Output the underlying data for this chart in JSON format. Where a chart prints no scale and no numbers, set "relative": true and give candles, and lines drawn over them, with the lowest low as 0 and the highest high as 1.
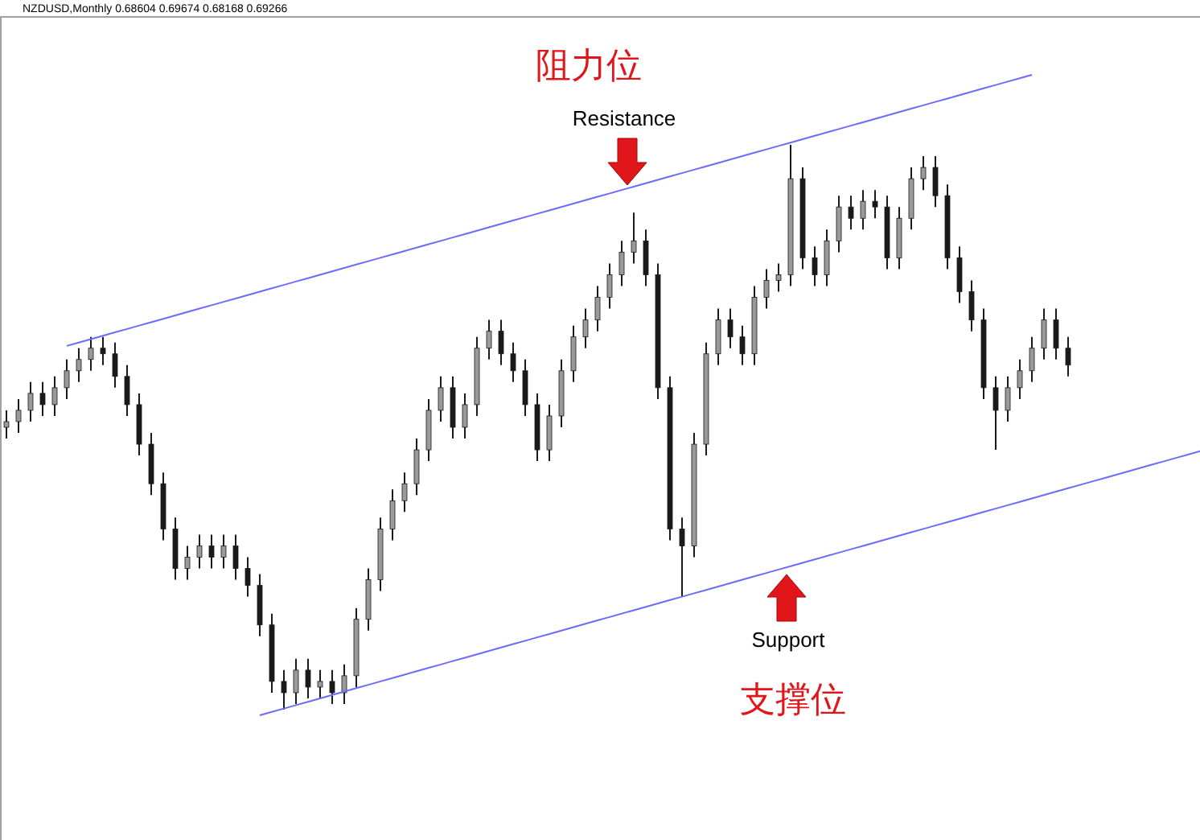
{
  "chart_data": {
    "type": "candlestick",
    "relative": true,
    "title": "NZDUSD,Monthly  0.68604 0.69674 0.68168 0.69266",
    "categories": [
      null,
      null,
      null,
      null,
      null,
      null,
      null,
      null,
      null,
      null,
      null,
      null,
      null,
      null,
      null,
      null,
      null,
      null,
      null,
      null,
      null,
      null,
      null,
      null,
      null,
      null,
      null,
      null,
      null,
      null,
      null,
      null,
      null,
      null,
      null,
      null,
      null,
      null,
      null,
      null,
      null,
      null,
      null,
      null,
      null,
      null,
      null,
      null,
      null,
      null,
      null,
      null,
      null,
      null,
      null,
      null,
      null,
      null,
      null,
      null,
      null,
      null,
      null,
      null,
      null,
      null,
      null,
      null,
      null,
      null,
      null,
      null,
      null,
      null,
      null,
      null,
      null,
      null,
      null,
      null,
      null,
      null,
      null,
      null,
      null,
      null,
      null,
      null,
      null,
      null,
      null,
      null,
      null,
      null,
      null,
      null,
      null,
      null,
      null,
      null
    ],
    "series": [
      {
        "color": "#1a1a1a",
        "ohlc": [
          [
            0.5,
            0.53,
            0.48,
            0.51
          ],
          [
            0.51,
            0.55,
            0.49,
            0.53
          ],
          [
            0.53,
            0.58,
            0.51,
            0.56
          ],
          [
            0.56,
            0.58,
            0.52,
            0.54
          ],
          [
            0.54,
            0.59,
            0.52,
            0.57
          ],
          [
            0.57,
            0.62,
            0.55,
            0.6
          ],
          [
            0.6,
            0.64,
            0.58,
            0.62
          ],
          [
            0.62,
            0.66,
            0.6,
            0.64
          ],
          [
            0.64,
            0.66,
            0.61,
            0.63
          ],
          [
            0.63,
            0.65,
            0.57,
            0.59
          ],
          [
            0.59,
            0.61,
            0.52,
            0.54
          ],
          [
            0.54,
            0.56,
            0.45,
            0.47
          ],
          [
            0.47,
            0.49,
            0.38,
            0.4
          ],
          [
            0.4,
            0.42,
            0.3,
            0.32
          ],
          [
            0.32,
            0.34,
            0.23,
            0.25
          ],
          [
            0.25,
            0.29,
            0.23,
            0.27
          ],
          [
            0.27,
            0.31,
            0.25,
            0.29
          ],
          [
            0.29,
            0.31,
            0.25,
            0.27
          ],
          [
            0.27,
            0.31,
            0.25,
            0.29
          ],
          [
            0.29,
            0.31,
            0.23,
            0.25
          ],
          [
            0.25,
            0.27,
            0.2,
            0.22
          ],
          [
            0.22,
            0.24,
            0.13,
            0.15
          ],
          [
            0.15,
            0.17,
            0.03,
            0.05
          ],
          [
            0.05,
            0.07,
            0,
            0.03
          ],
          [
            0.03,
            0.09,
            0.01,
            0.07
          ],
          [
            0.07,
            0.09,
            0.02,
            0.04
          ],
          [
            0.04,
            0.07,
            0.02,
            0.05
          ],
          [
            0.05,
            0.07,
            0.01,
            0.03
          ],
          [
            0.03,
            0.08,
            0.01,
            0.06
          ],
          [
            0.06,
            0.18,
            0.04,
            0.16
          ],
          [
            0.16,
            0.25,
            0.14,
            0.23
          ],
          [
            0.23,
            0.34,
            0.21,
            0.32
          ],
          [
            0.32,
            0.39,
            0.3,
            0.37
          ],
          [
            0.37,
            0.42,
            0.35,
            0.4
          ],
          [
            0.4,
            0.48,
            0.38,
            0.46
          ],
          [
            0.46,
            0.55,
            0.44,
            0.53
          ],
          [
            0.53,
            0.59,
            0.51,
            0.57
          ],
          [
            0.57,
            0.59,
            0.48,
            0.5
          ],
          [
            0.5,
            0.56,
            0.48,
            0.54
          ],
          [
            0.54,
            0.66,
            0.52,
            0.64
          ],
          [
            0.64,
            0.69,
            0.62,
            0.67
          ],
          [
            0.67,
            0.69,
            0.61,
            0.63
          ],
          [
            0.63,
            0.65,
            0.58,
            0.6
          ],
          [
            0.6,
            0.62,
            0.52,
            0.54
          ],
          [
            0.54,
            0.56,
            0.44,
            0.46
          ],
          [
            0.46,
            0.54,
            0.44,
            0.52
          ],
          [
            0.52,
            0.62,
            0.5,
            0.6
          ],
          [
            0.6,
            0.68,
            0.58,
            0.66
          ],
          [
            0.66,
            0.71,
            0.64,
            0.69
          ],
          [
            0.69,
            0.75,
            0.67,
            0.73
          ],
          [
            0.73,
            0.79,
            0.71,
            0.77
          ],
          [
            0.77,
            0.83,
            0.75,
            0.81
          ],
          [
            0.81,
            0.88,
            0.79,
            0.83
          ],
          [
            0.83,
            0.85,
            0.75,
            0.77
          ],
          [
            0.77,
            0.79,
            0.55,
            0.57
          ],
          [
            0.57,
            0.59,
            0.3,
            0.32
          ],
          [
            0.32,
            0.34,
            0.2,
            0.29
          ],
          [
            0.29,
            0.49,
            0.27,
            0.47
          ],
          [
            0.47,
            0.65,
            0.45,
            0.63
          ],
          [
            0.63,
            0.71,
            0.61,
            0.69
          ],
          [
            0.69,
            0.71,
            0.64,
            0.66
          ],
          [
            0.66,
            0.68,
            0.61,
            0.63
          ],
          [
            0.63,
            0.75,
            0.61,
            0.73
          ],
          [
            0.73,
            0.78,
            0.71,
            0.76
          ],
          [
            0.76,
            0.79,
            0.74,
            0.77
          ],
          [
            0.77,
            1,
            0.75,
            0.94
          ],
          [
            0.94,
            0.96,
            0.78,
            0.8
          ],
          [
            0.8,
            0.82,
            0.75,
            0.77
          ],
          [
            0.77,
            0.85,
            0.75,
            0.83
          ],
          [
            0.83,
            0.91,
            0.81,
            0.89
          ],
          [
            0.89,
            0.91,
            0.85,
            0.87
          ],
          [
            0.87,
            0.92,
            0.85,
            0.9
          ],
          [
            0.9,
            0.92,
            0.87,
            0.89
          ],
          [
            0.89,
            0.91,
            0.78,
            0.8
          ],
          [
            0.8,
            0.89,
            0.78,
            0.87
          ],
          [
            0.87,
            0.96,
            0.85,
            0.94
          ],
          [
            0.94,
            0.98,
            0.92,
            0.96
          ],
          [
            0.96,
            0.98,
            0.89,
            0.91
          ],
          [
            0.91,
            0.93,
            0.78,
            0.8
          ],
          [
            0.8,
            0.82,
            0.72,
            0.74
          ],
          [
            0.74,
            0.76,
            0.67,
            0.69
          ],
          [
            0.69,
            0.71,
            0.55,
            0.57
          ],
          [
            0.57,
            0.59,
            0.46,
            0.53
          ],
          [
            0.53,
            0.59,
            0.51,
            0.57
          ],
          [
            0.57,
            0.62,
            0.55,
            0.6
          ],
          [
            0.6,
            0.66,
            0.58,
            0.64
          ],
          [
            0.64,
            0.71,
            0.62,
            0.69
          ],
          [
            0.69,
            0.71,
            0.62,
            0.64
          ],
          [
            0.64,
            0.66,
            0.59,
            0.61
          ],
          null,
          null,
          null,
          null,
          null,
          null,
          null,
          null,
          null,
          null,
          null
        ]
      },
      {
        "type": "line",
        "color": "#6b6bff",
        "values": [
          null,
          null,
          null,
          null,
          null,
          0.644,
          0.65,
          0.656,
          0.662,
          0.668,
          0.674,
          0.68,
          0.686,
          0.692,
          0.698,
          0.704,
          0.71,
          0.716,
          0.722,
          0.728,
          0.734,
          0.74,
          0.746,
          0.752,
          0.758,
          0.764,
          0.77,
          0.776,
          0.782,
          0.788,
          0.794,
          0.8,
          0.806,
          0.812,
          0.818,
          0.824,
          0.83,
          0.836,
          0.842,
          0.848,
          0.854,
          0.86,
          0.866,
          0.872,
          0.878,
          0.884,
          0.89,
          0.896,
          0.902,
          0.908,
          0.914,
          0.92,
          0.926,
          0.932,
          0.938,
          0.944,
          0.95,
          0.956,
          0.962,
          0.968,
          0.974,
          0.98,
          0.986,
          0.992,
          0.998,
          1.004,
          1.01,
          1.016,
          1.022,
          1.028,
          1.034,
          1.04,
          1.046,
          1.052,
          1.058,
          1.064,
          1.07,
          1.076,
          1.082,
          1.088,
          1.094,
          1.1,
          1.106,
          1.112,
          1.118,
          1.124,
          null,
          null,
          null,
          null,
          null,
          null,
          null,
          null,
          null,
          null,
          null,
          null,
          null,
          null
        ]
      },
      {
        "type": "line",
        "color": "#6b6bff",
        "values": [
          null,
          null,
          null,
          null,
          null,
          null,
          null,
          null,
          null,
          null,
          null,
          null,
          null,
          null,
          null,
          null,
          null,
          null,
          null,
          null,
          null,
          -0.01,
          -0.004,
          0.002,
          0.008,
          0.014,
          0.02,
          0.026,
          0.032,
          0.038,
          0.044,
          0.05,
          0.056,
          0.062,
          0.068,
          0.074,
          0.08,
          0.086,
          0.092,
          0.098,
          0.104,
          0.11,
          0.116,
          0.122,
          0.128,
          0.134,
          0.14,
          0.146,
          0.152,
          0.158,
          0.164,
          0.17,
          0.176,
          0.182,
          0.188,
          0.194,
          0.2,
          0.206,
          0.212,
          0.218,
          0.224,
          0.23,
          0.236,
          0.242,
          0.248,
          0.254,
          0.26,
          0.266,
          0.272,
          0.278,
          0.284,
          0.29,
          0.296,
          0.302,
          0.308,
          0.314,
          0.32,
          0.326,
          0.332,
          0.338,
          0.344,
          0.35,
          0.356,
          0.362,
          0.368,
          0.374,
          0.38,
          0.386,
          0.392,
          0.398,
          0.404,
          0.41,
          0.416,
          0.422,
          0.428,
          0.434,
          0.44,
          0.446,
          0.452,
          0.458
        ]
      }
    ],
    "annotations": [
      "阻力位",
      "Resistance",
      "Support",
      "支撑位"
    ]
  }
}
